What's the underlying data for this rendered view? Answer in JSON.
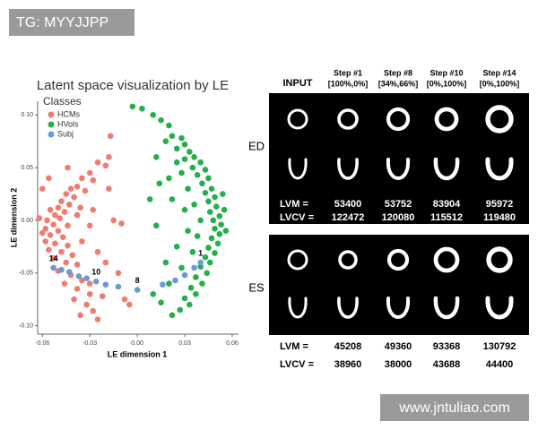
{
  "watermarks": [
    "TG: MYYJJPP",
    "www.jntuliao.com"
  ],
  "chart_data": {
    "type": "scatter",
    "title": "Latent space visualization by LE",
    "xlabel": "LE dimension 1",
    "ylabel": "LE dimension 2",
    "legend_title": "Classes",
    "legend": "top-left",
    "xlim": [
      -0.063,
      0.064
    ],
    "ylim": [
      -0.108,
      0.113
    ],
    "xticks": [
      -0.06,
      -0.03,
      {
        "value": 0,
        "label": "0.00"
      },
      0.03,
      0.06
    ],
    "yticks": [
      {
        "value": -0.1,
        "label": "-0.10"
      },
      -0.05,
      {
        "value": 0,
        "label": "0.00"
      },
      0.05,
      {
        "value": 0.1,
        "label": "0.10"
      }
    ],
    "series": [
      {
        "name": "HCMs",
        "color": "#f07c71",
        "x": [
          -0.018,
          -0.02,
          -0.025,
          -0.03,
          -0.028,
          -0.035,
          -0.038,
          -0.033,
          -0.042,
          -0.04,
          -0.045,
          -0.048,
          -0.043,
          -0.05,
          -0.046,
          -0.052,
          -0.055,
          -0.049,
          -0.057,
          -0.053,
          -0.058,
          -0.05,
          -0.055,
          -0.047,
          -0.058,
          -0.052,
          -0.044,
          -0.056,
          -0.048,
          -0.041,
          -0.053,
          -0.045,
          -0.038,
          -0.05,
          -0.042,
          -0.035,
          -0.046,
          -0.038,
          -0.03,
          -0.04,
          -0.032,
          -0.028,
          -0.036,
          -0.025,
          -0.03,
          -0.035,
          -0.03,
          -0.038,
          -0.028,
          -0.025,
          -0.02,
          -0.015,
          -0.01,
          -0.018,
          -0.062,
          -0.06,
          -0.017,
          -0.044,
          -0.022,
          -0.008,
          -0.012,
          -0.005,
          -0.06,
          -0.056,
          -0.036,
          -0.044
        ],
        "y": [
          0.06,
          0.052,
          0.055,
          0.045,
          0.038,
          0.04,
          0.032,
          0.028,
          0.03,
          0.022,
          0.025,
          0.018,
          0.015,
          0.012,
          0.008,
          0.005,
          0.01,
          0.002,
          0,
          -0.004,
          -0.008,
          -0.01,
          -0.014,
          -0.016,
          -0.02,
          -0.022,
          -0.024,
          -0.028,
          -0.03,
          -0.033,
          -0.036,
          -0.04,
          -0.042,
          -0.048,
          -0.052,
          -0.057,
          -0.06,
          -0.065,
          -0.07,
          -0.075,
          -0.08,
          -0.086,
          -0.09,
          -0.094,
          -0.06,
          -0.02,
          -0.005,
          0.005,
          0.01,
          -0.03,
          -0.04,
          0,
          -0.003,
          0.03,
          0.002,
          -0.012,
          0.08,
          0.05,
          -0.072,
          -0.075,
          -0.05,
          -0.08,
          0.03,
          0.04,
          0.012,
          -0.005
        ]
      },
      {
        "name": "HVols",
        "color": "#23b04a",
        "x": [
          -0.003,
          0.003,
          0.01,
          0.015,
          0.02,
          0.022,
          0.018,
          0.028,
          0.03,
          0.025,
          0.033,
          0.036,
          0.03,
          0.04,
          0.035,
          0.043,
          0.038,
          0.045,
          0.041,
          0.047,
          0.043,
          0.049,
          0.045,
          0.05,
          0.046,
          0.052,
          0.048,
          0.053,
          0.049,
          0.052,
          0.047,
          0.051,
          0.045,
          0.049,
          0.043,
          0.046,
          0.04,
          0.044,
          0.037,
          0.041,
          0.034,
          0.037,
          0.03,
          0.033,
          0.027,
          0.022,
          0.015,
          0.01,
          0.02,
          0.028,
          0.035,
          0.038,
          0.04,
          0.036,
          0.032,
          0.028,
          0.025,
          0.012,
          0.02,
          0.03,
          0.032,
          0.025,
          0.018,
          0.055,
          0.056,
          0.054,
          0.014,
          0.008,
          0.012,
          0.022
        ],
        "y": [
          0.108,
          0.106,
          0.1,
          0.095,
          0.09,
          0.08,
          0.075,
          0.078,
          0.072,
          0.068,
          0.065,
          0.06,
          0.058,
          0.055,
          0.05,
          0.048,
          0.043,
          0.04,
          0.035,
          0.03,
          0.026,
          0.022,
          0.018,
          0.013,
          0.008,
          0.004,
          0,
          -0.004,
          -0.008,
          -0.013,
          -0.017,
          -0.022,
          -0.026,
          -0.031,
          -0.035,
          -0.04,
          -0.044,
          -0.05,
          -0.054,
          -0.06,
          -0.064,
          -0.07,
          -0.074,
          -0.08,
          -0.085,
          -0.09,
          -0.078,
          -0.07,
          -0.06,
          -0.045,
          -0.03,
          -0.015,
          0,
          0.015,
          0.03,
          0.045,
          0.055,
          0.06,
          0.04,
          0.01,
          -0.01,
          -0.025,
          -0.04,
          0.01,
          -0.01,
          0.025,
          0.035,
          0.02,
          -0.005,
          0.02
        ]
      },
      {
        "name": "Subj",
        "color": "#6b9bd6",
        "x": [
          -0.053,
          -0.048,
          -0.043,
          -0.037,
          -0.032,
          -0.026,
          -0.02,
          -0.012,
          0,
          0.016,
          0.024,
          0.03,
          0.036,
          0.04
        ],
        "y": [
          -0.045,
          -0.047,
          -0.049,
          -0.053,
          -0.055,
          -0.058,
          -0.061,
          -0.063,
          -0.066,
          -0.061,
          -0.057,
          -0.052,
          -0.045,
          -0.04
        ],
        "labels": [
          "14",
          null,
          null,
          null,
          null,
          "10",
          null,
          null,
          "8",
          null,
          null,
          null,
          null,
          "1"
        ]
      }
    ]
  },
  "panels": {
    "input_label": "INPUT",
    "steps": [
      {
        "name": "Step #1",
        "mix": "[100%,0%]"
      },
      {
        "name": "Step #8",
        "mix": "[34%,66%]"
      },
      {
        "name": "Step #10",
        "mix": "[0%,100%]"
      },
      {
        "name": "Step #14",
        "mix": "[0%,100%]"
      }
    ],
    "rows": [
      {
        "label": "ED",
        "metrics": [
          {
            "name": "LVM =",
            "values": [
              53400,
              53752,
              83904,
              95972
            ]
          },
          {
            "name": "LVCV =",
            "values": [
              122472,
              120080,
              115512,
              119480
            ]
          }
        ]
      },
      {
        "label": "ES",
        "metrics": [
          {
            "name": "LVM =",
            "values": [
              45208,
              49360,
              93368,
              130792
            ]
          },
          {
            "name": "LVCV =",
            "values": [
              38960,
              38000,
              43688,
              44400
            ]
          }
        ]
      }
    ]
  }
}
